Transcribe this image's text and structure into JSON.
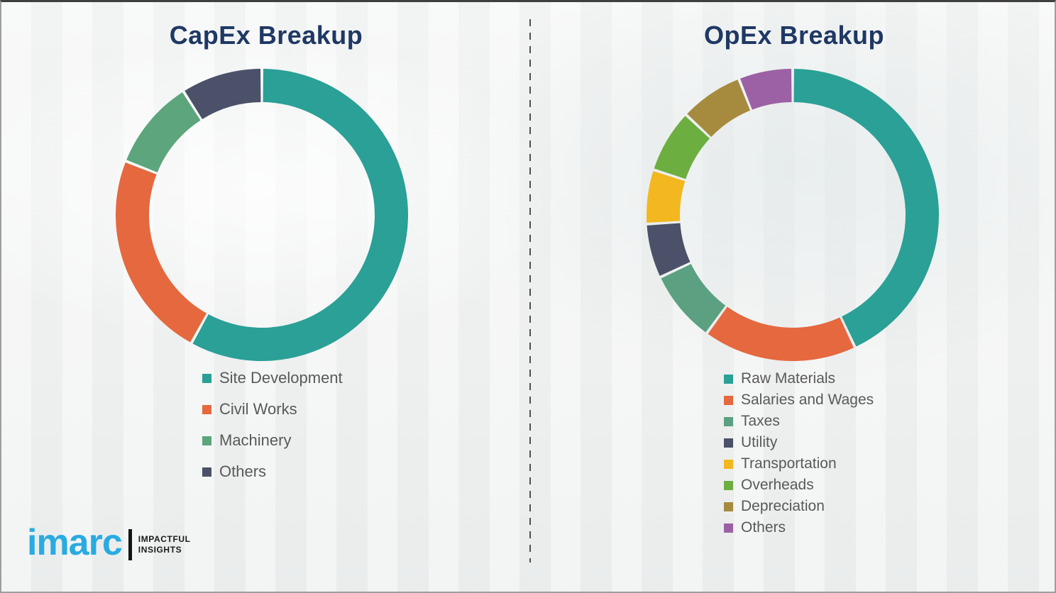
{
  "colors": {
    "title": "#1f3864",
    "legend_text": "#595959",
    "brand_blue": "#29abe2",
    "divider": "#4f4f4f",
    "background": "#f3f4f4"
  },
  "chart_data": [
    {
      "type": "pie",
      "subtype": "donut",
      "title": "CapEx Breakup",
      "categories": [
        "Site Development",
        "Civil Works",
        "Machinery",
        "Others"
      ],
      "values": [
        58,
        23,
        10,
        9
      ],
      "unit": "percent (estimated from arc angles)",
      "colors": [
        "#2aa096",
        "#e5683f",
        "#5da57c",
        "#4a5168"
      ],
      "start_angle_deg": 0,
      "direction": "clockwise",
      "legend_position": "below-left",
      "inner_radius_ratio": 0.77
    },
    {
      "type": "pie",
      "subtype": "donut",
      "title": "OpEx Breakup",
      "categories": [
        "Raw Materials",
        "Salaries and Wages",
        "Taxes",
        "Utility",
        "Transportation",
        "Overheads",
        "Depreciation",
        "Others"
      ],
      "values": [
        43,
        17,
        8,
        6,
        6,
        7,
        7,
        6
      ],
      "unit": "percent (estimated from arc angles)",
      "colors": [
        "#2aa096",
        "#e5683f",
        "#5ba081",
        "#4a5168",
        "#f3b71f",
        "#6cae3f",
        "#a68a3e",
        "#9c60a5"
      ],
      "start_angle_deg": 0,
      "direction": "clockwise",
      "legend_position": "below-left",
      "inner_radius_ratio": 0.77
    }
  ],
  "logo": {
    "brand": "imarc",
    "tagline_line1": "IMPACTFUL",
    "tagline_line2": "INSIGHTS"
  }
}
